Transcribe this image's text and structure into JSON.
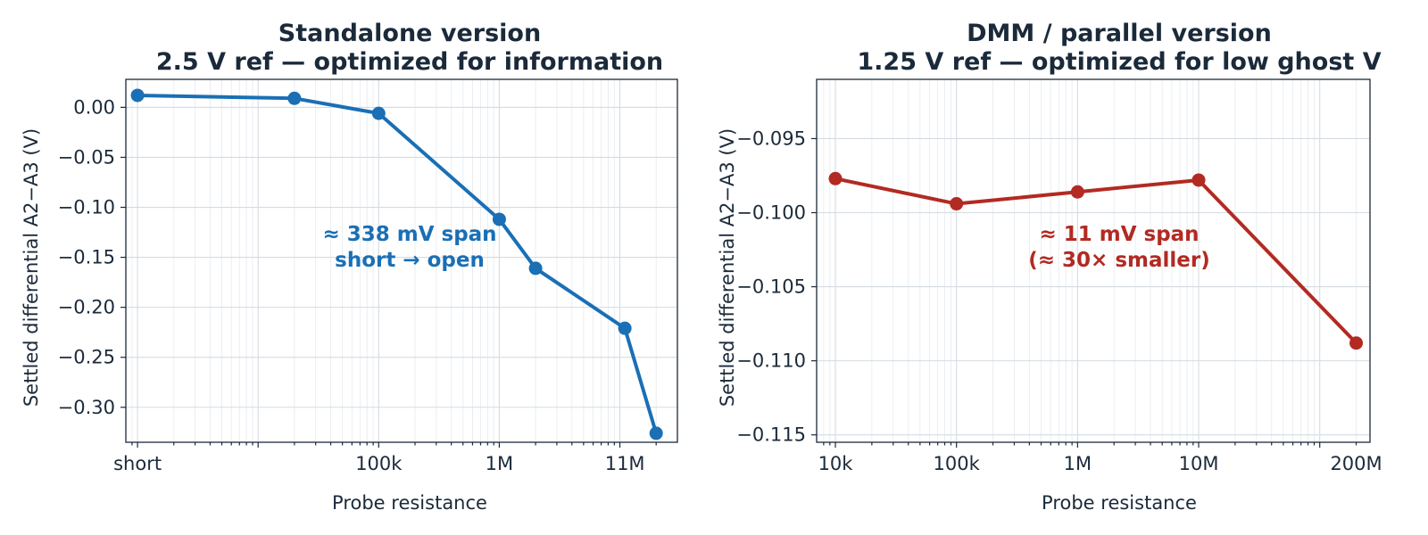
{
  "chart_data": [
    {
      "type": "line",
      "title_line1": "Standalone version",
      "title_line2": "2.5 V ref — optimized for information",
      "xlabel": "Probe resistance",
      "ylabel": "Settled differential  A2−A3  (V)",
      "x_scale": "log",
      "x_tick_labels": [
        "short",
        "100k",
        "1M",
        "11M"
      ],
      "y_ticks": [
        "0.00",
        "−0.05",
        "−0.10",
        "−0.15",
        "−0.20",
        "−0.25",
        "−0.30"
      ],
      "ylim": [
        -0.335,
        0.028
      ],
      "grid": true,
      "color": "#1a6fb5",
      "series": [
        {
          "x": [
            "short",
            "~20k",
            "100k",
            "1M",
            "2M",
            "11M",
            "20M"
          ],
          "values": [
            0.012,
            0.009,
            -0.006,
            -0.112,
            -0.161,
            -0.221,
            -0.326
          ]
        }
      ],
      "annotation_line1": "≈ 338 mV span",
      "annotation_line2": "short → open"
    },
    {
      "type": "line",
      "title_line1": "DMM / parallel version",
      "title_line2": "1.25 V ref — optimized for low ghost V",
      "xlabel": "Probe resistance",
      "ylabel": "Settled differential  A2−A3  (V)",
      "x_scale": "log",
      "x_tick_labels": [
        "10k",
        "100k",
        "1M",
        "10M",
        "200M"
      ],
      "y_ticks": [
        "−0.095",
        "−0.100",
        "−0.105",
        "−0.110",
        "−0.115"
      ],
      "ylim": [
        -0.1155,
        -0.091
      ],
      "grid": true,
      "color": "#b22a22",
      "series": [
        {
          "x": [
            "10k",
            "100k",
            "1M",
            "10M",
            "200M"
          ],
          "values": [
            -0.0977,
            -0.0994,
            -0.0986,
            -0.0978,
            -0.1088
          ]
        }
      ],
      "annotation_line1": "≈ 11 mV span",
      "annotation_line2": "(≈ 30× smaller)"
    }
  ]
}
